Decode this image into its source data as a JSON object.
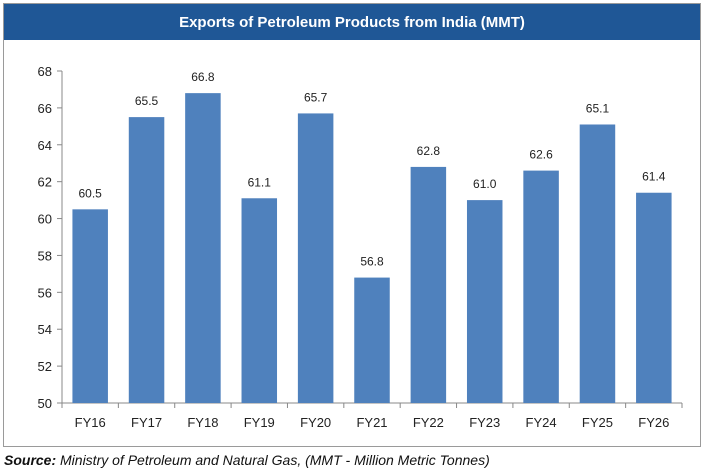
{
  "chart_data": {
    "type": "bar",
    "title": "Exports of Petroleum Products from India (MMT)",
    "categories": [
      "FY16",
      "FY17",
      "FY18",
      "FY19",
      "FY20",
      "FY21",
      "FY22",
      "FY23",
      "FY24",
      "FY25",
      "FY26"
    ],
    "values": [
      60.5,
      65.5,
      66.8,
      61.1,
      65.7,
      56.8,
      62.8,
      61.0,
      62.6,
      65.1,
      61.4
    ],
    "value_labels": [
      "60.5",
      "65.5",
      "66.8",
      "61.1",
      "65.7",
      "56.8",
      "62.8",
      "61.0",
      "62.6",
      "65.1",
      "61.4"
    ],
    "y_ticks": [
      50,
      52,
      54,
      56,
      58,
      60,
      62,
      64,
      66,
      68
    ],
    "ylim": [
      50,
      68
    ],
    "xlabel": "",
    "ylabel": "",
    "grid": false,
    "legend": "none",
    "bar_color": "#4f81bd",
    "title_bar_color": "#1f5796"
  },
  "source": {
    "label": "Source:",
    "text": " Ministry of Petroleum and Natural Gas, (MMT - Million Metric Tonnes)"
  }
}
